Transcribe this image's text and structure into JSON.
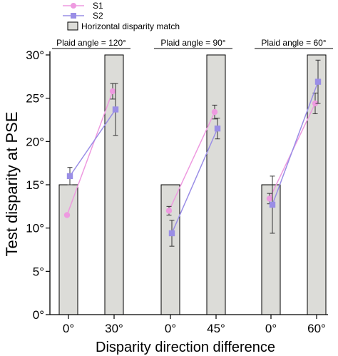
{
  "chart_data": {
    "type": "bar",
    "xlabel": "Disparity direction difference",
    "ylabel": "Test disparity at PSE",
    "ylim": [
      0,
      30
    ],
    "yticks": [
      "0°",
      "5°",
      "10°",
      "15°",
      "20°",
      "25°",
      "30°"
    ],
    "ytick_values": [
      0,
      5,
      10,
      15,
      20,
      25,
      30
    ],
    "categories": [
      "0°",
      "30°",
      "0°",
      "45°",
      "0°",
      "60°"
    ],
    "groups": [
      {
        "label": "Plaid angle = 120°",
        "categories": [
          "0°",
          "30°"
        ]
      },
      {
        "label": "Plaid angle = 90°",
        "categories": [
          "0°",
          "45°"
        ]
      },
      {
        "label": "Plaid angle = 60°",
        "categories": [
          "0°",
          "60°"
        ]
      }
    ],
    "bars": {
      "name": "Horizontal disparity match",
      "values": [
        15,
        30,
        15,
        30,
        15,
        30
      ],
      "color": "#dcdcd8"
    },
    "series": [
      {
        "name": "S1",
        "marker": "circle",
        "color": "#ee9ae0",
        "values": [
          11.5,
          25.8,
          12.0,
          23.4,
          13.4,
          24.4
        ],
        "errors": [
          0.0,
          0.9,
          0.5,
          0.8,
          0.6,
          1.2
        ]
      },
      {
        "name": "S2",
        "marker": "square",
        "color": "#9a8ee6",
        "values": [
          16.0,
          23.7,
          9.4,
          21.5,
          12.7,
          26.9
        ],
        "errors": [
          1.0,
          3.0,
          1.5,
          1.2,
          3.3,
          2.5
        ]
      }
    ],
    "legend_position": "top-left",
    "grid": false
  }
}
